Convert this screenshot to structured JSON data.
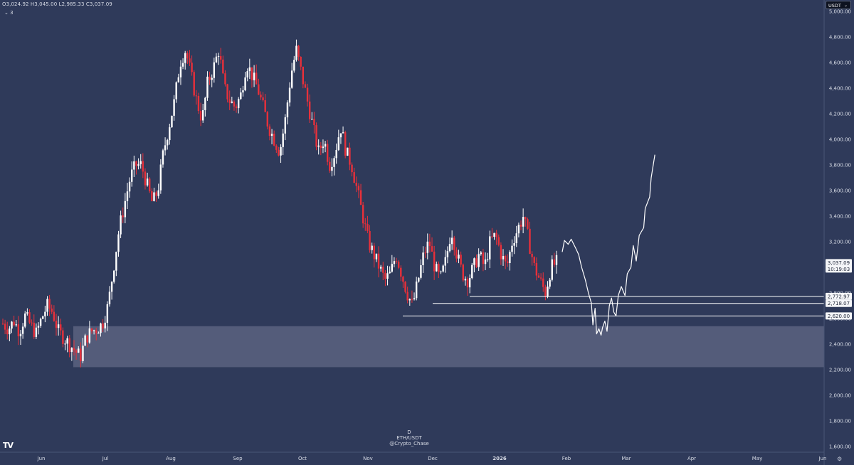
{
  "header": {
    "ohlc": "O3,024.92  H3,045.00  L2,985.33  C3,037.09",
    "indicator_count": "3",
    "currency_selector": "USDT"
  },
  "watermark": {
    "interval": "D",
    "symbol": "ETH/USDT",
    "author": "@Crypto_Chase"
  },
  "colors": {
    "background": "#2f3a5a",
    "up": "#ffffff",
    "down": "#e8303a",
    "zone": "#5a6380",
    "lines": "#ffffff"
  },
  "chart_data": {
    "type": "candlestick",
    "x_axis_labels": [
      "Jun",
      "Jul",
      "Aug",
      "Sep",
      "Oct",
      "Nov",
      "Dec",
      "2026",
      "Feb",
      "Mar",
      "Apr",
      "May",
      "Jun"
    ],
    "y_axis_ticks": [
      "5,000.00",
      "4,800.00",
      "4,600.00",
      "4,400.00",
      "4,200.00",
      "4,000.00",
      "3,800.00",
      "3,600.00",
      "3,400.00",
      "3,200.00",
      "3,000.00",
      "2,800.00",
      "2,600.00",
      "2,400.00",
      "2,200.00",
      "2,000.00",
      "1,800.00",
      "1,600.00"
    ],
    "ylim": [
      1600,
      5000
    ],
    "current_price": {
      "label": "3,037.09",
      "countdown": "10:19:03",
      "value": 3037.09
    },
    "price_levels": [
      {
        "label": "2,772.97",
        "value": 2772.97
      },
      {
        "label": "2,718.07",
        "value": 2718.07
      },
      {
        "label": "2,620.00",
        "value": 2620.0
      }
    ],
    "demand_zone": {
      "low": 2220,
      "high": 2540
    },
    "closes_path": [
      2560,
      2520,
      2580,
      2500,
      2620,
      2550,
      2480,
      2600,
      2700,
      2650,
      2500,
      2450,
      2400,
      2350,
      2300,
      2450,
      2500,
      2520,
      2560,
      2700,
      3000,
      3300,
      3500,
      3700,
      3800,
      3800,
      3650,
      3500,
      3600,
      3900,
      4100,
      4300,
      4600,
      4700,
      4500,
      4300,
      4150,
      4450,
      4550,
      4700,
      4400,
      4300,
      4250,
      4350,
      4600,
      4500,
      4400,
      4250,
      4100,
      4000,
      3900,
      4150,
      4500,
      4700,
      4500,
      4300,
      4100,
      3900,
      4000,
      3800,
      3900,
      4100,
      3900,
      3800,
      3600,
      3400,
      3200,
      3100,
      3000,
      2900,
      2950,
      3100,
      2950,
      2800,
      2700,
      2900,
      3100,
      3200,
      3000,
      2900,
      3050,
      3300,
      3100,
      2950,
      2900,
      3000,
      3100,
      3000,
      3200,
      3250,
      3100,
      3000,
      3200,
      3300,
      3400,
      3200,
      3000,
      2900,
      2800,
      3000,
      3037
    ],
    "projection_path": [
      [
        3120,
        3
      ],
      [
        3210,
        5
      ],
      [
        3180,
        4
      ],
      [
        3220,
        6
      ],
      [
        3150,
        4
      ],
      [
        3100,
        4
      ],
      [
        3000,
        5
      ],
      [
        2900,
        4
      ],
      [
        2800,
        4
      ],
      [
        2720,
        2
      ],
      [
        2550,
        3
      ],
      [
        2680,
        2
      ],
      [
        2480,
        3
      ],
      [
        2520,
        3
      ],
      [
        2470,
        2
      ],
      [
        2530,
        3
      ],
      [
        2580,
        3
      ],
      [
        2500,
        3
      ],
      [
        2700,
        3
      ],
      [
        2760,
        3
      ],
      [
        2650,
        3
      ],
      [
        2620,
        3
      ],
      [
        2780,
        4
      ],
      [
        2850,
        5
      ],
      [
        2780,
        3
      ],
      [
        2950,
        5
      ],
      [
        3000,
        3
      ],
      [
        3170,
        4
      ],
      [
        3050,
        4
      ],
      [
        3250,
        6
      ],
      [
        3310,
        2
      ],
      [
        3460,
        6
      ],
      [
        3550,
        2
      ],
      [
        3700,
        5
      ],
      [
        3880,
        2
      ]
    ]
  }
}
